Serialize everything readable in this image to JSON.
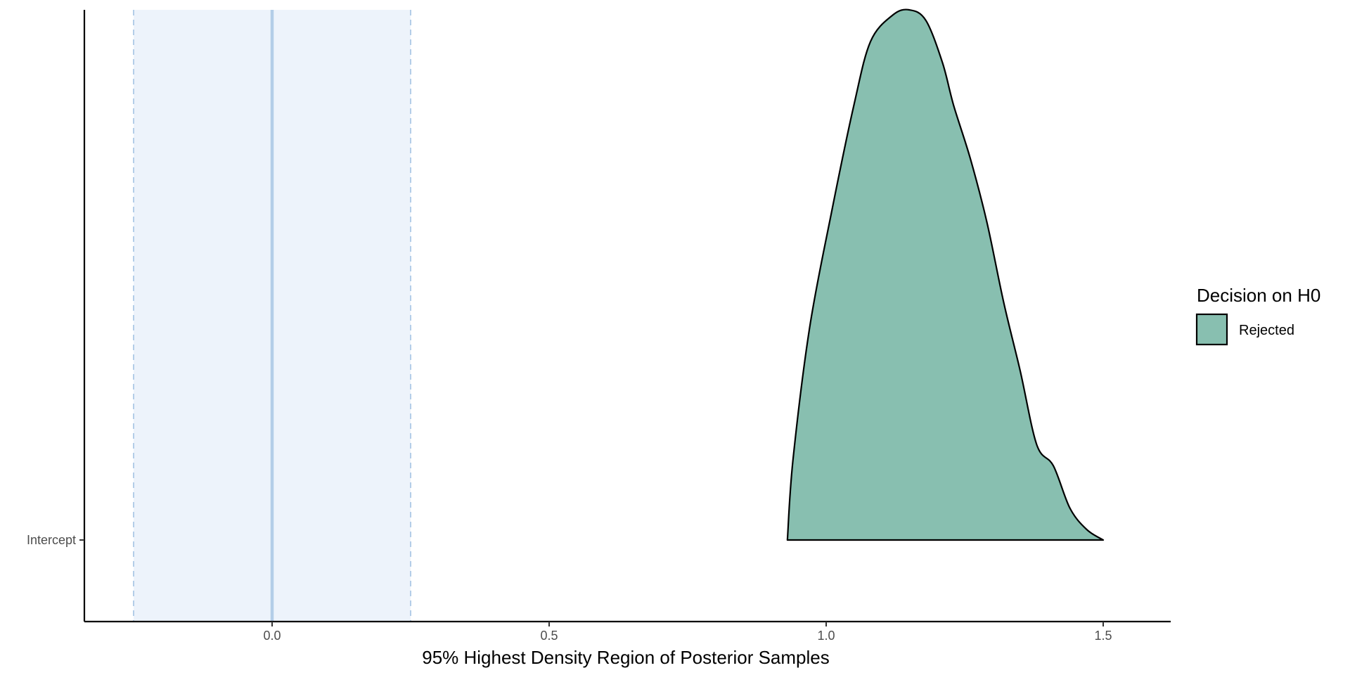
{
  "chart_data": {
    "type": "area",
    "title": "",
    "xlabel": "95% Highest Density Region of Posterior Samples",
    "ylabel": "",
    "xlim": [
      -0.34,
      1.62
    ],
    "x_ticks": [
      0.0,
      0.5,
      1.0,
      1.5
    ],
    "x_tick_labels": [
      "0.0",
      "0.5",
      "1.0",
      "1.5"
    ],
    "y_categories": [
      "Intercept"
    ],
    "grid": false,
    "rope": {
      "low": -0.25,
      "high": 0.25,
      "center": 0.0
    },
    "series": [
      {
        "name": "Rejected",
        "category": "Intercept",
        "hdi": [
          0.93,
          1.5
        ],
        "density": {
          "x": [
            0.93,
            0.94,
            0.97,
            1.01,
            1.05,
            1.08,
            1.12,
            1.15,
            1.18,
            1.21,
            1.23,
            1.26,
            1.29,
            1.32,
            1.35,
            1.38,
            1.41,
            1.44,
            1.47,
            1.5
          ],
          "y": [
            0.0,
            0.15,
            0.4,
            0.62,
            0.82,
            0.94,
            0.99,
            1.0,
            0.98,
            0.9,
            0.82,
            0.72,
            0.6,
            0.45,
            0.32,
            0.18,
            0.14,
            0.06,
            0.02,
            0.0
          ]
        }
      }
    ],
    "legend": {
      "title": "Decision on H0",
      "position": "right",
      "entries": [
        {
          "label": "Rejected",
          "color": "#88bfb0"
        }
      ]
    },
    "colors": {
      "fill": "#88bfb0",
      "outline": "#000000",
      "rope_fill": "#edf3fb",
      "rope_line": "#b3cde8"
    }
  }
}
